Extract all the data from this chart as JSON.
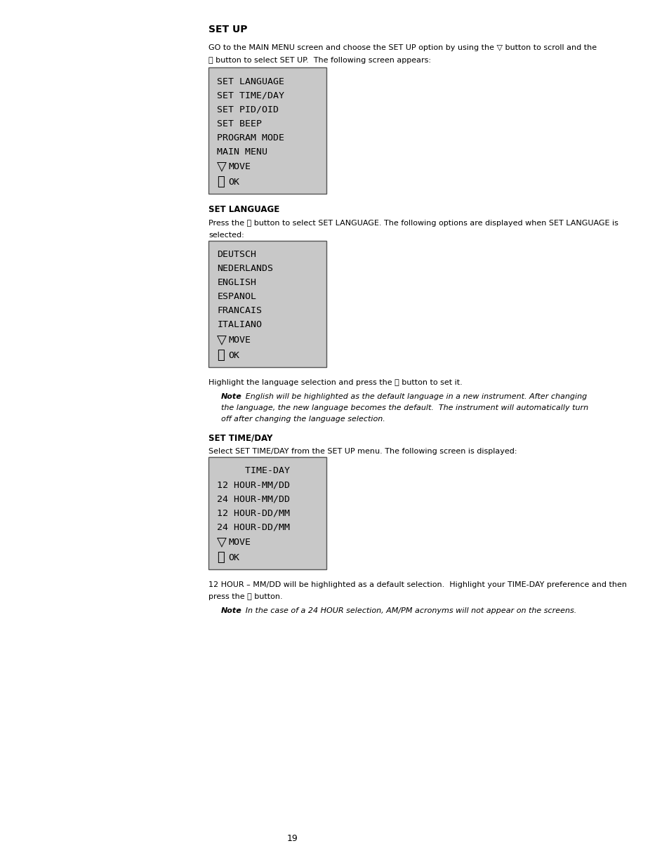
{
  "page_bg": "#ffffff",
  "text_color": "#000000",
  "screen_bg": "#c8c8c8",
  "screen_border": "#555555",
  "title": "SET UP",
  "intro_line1": "GO to the MAIN MENU screen and choose the SET UP option by using the ▽ button to scroll and the",
  "intro_line2": "Ⓘ button to select SET UP.  The following screen appears:",
  "screen1_lines": [
    "SET LANGUAGE",
    "SET TIME/DAY",
    "SET PID/OID",
    "SET BEEP",
    "PROGRAM MODE",
    "MAIN MENU"
  ],
  "screen1_move_ok": [
    [
      "▽",
      "MOVE"
    ],
    [
      "Ⓘ",
      "OK"
    ]
  ],
  "set_language_header": "SET LANGUAGE",
  "set_language_intro1": "Press the Ⓘ button to select SET LANGUAGE. The following options are displayed when SET LANGUAGE is",
  "set_language_intro2": "selected:",
  "screen2_lines": [
    "DEUTSCH",
    "NEDERLANDS",
    "ENGLISH",
    "ESPANOL",
    "FRANCAIS",
    "ITALIANO"
  ],
  "screen2_move_ok": [
    [
      "▽",
      "MOVE"
    ],
    [
      "Ⓘ",
      "OK"
    ]
  ],
  "highlight_text": "Highlight the language selection and press the Ⓘ button to set it.",
  "note1_lines": [
    ":  English will be highlighted as the default language in a new instrument. After changing",
    "the language, the new language becomes the default.  The instrument will automatically turn",
    "off after changing the language selection."
  ],
  "set_timeday_header": "SET TIME/DAY",
  "set_timeday_intro": "Select SET TIME/DAY from the SET UP menu. The following screen is displayed:",
  "screen3_top": "     TIME-DAY",
  "screen3_lines": [
    "12 HOUR-MM/DD",
    "24 HOUR-MM/DD",
    "12 HOUR-DD/MM",
    "24 HOUR-DD/MM"
  ],
  "screen3_move_ok": [
    [
      "▽",
      "MOVE"
    ],
    [
      "Ⓘ",
      "OK"
    ]
  ],
  "timeday_line1": "12 HOUR – MM/DD will be highlighted as a default selection.  Highlight your TIME-DAY preference and then",
  "timeday_line2": "press the Ⓘ button.",
  "note2_line": ":  In the case of a 24 HOUR selection, AM/PM acronyms will not appear on the screens.",
  "page_number": "19"
}
